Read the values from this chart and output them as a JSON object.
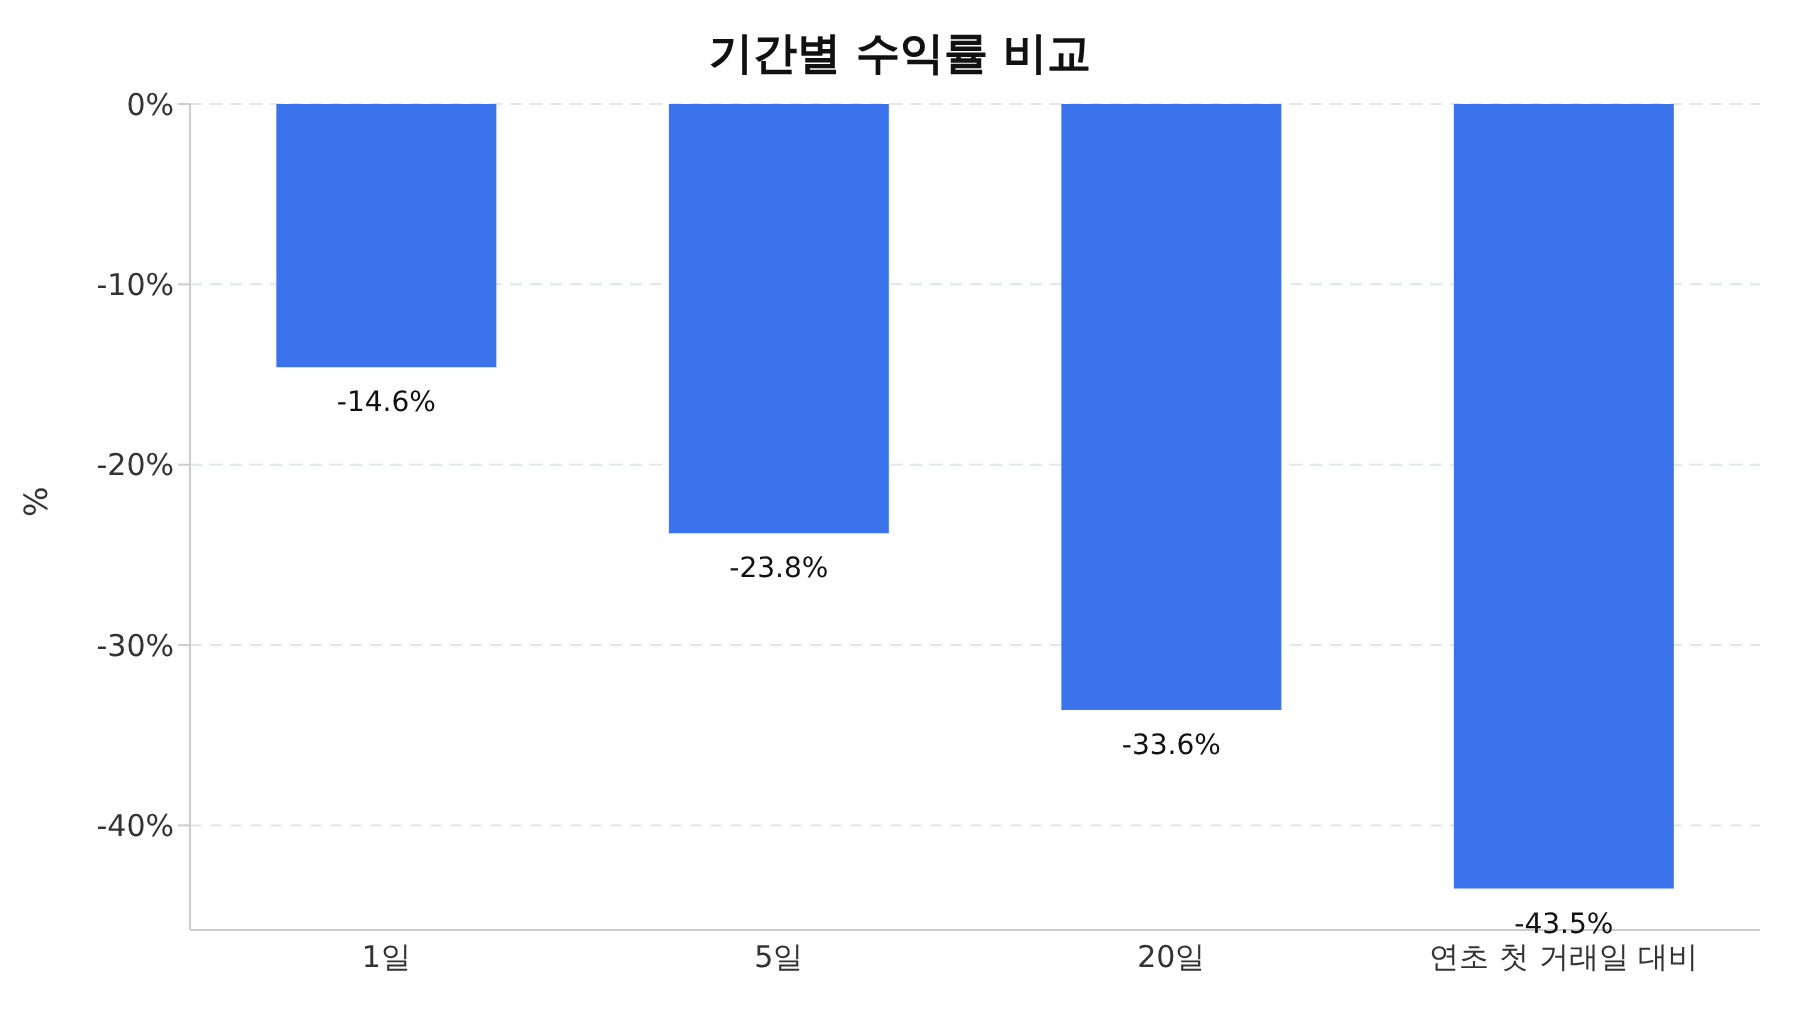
{
  "chart_data": {
    "type": "bar",
    "title": "기간별 수익률 비교",
    "ylabel": "%",
    "categories": [
      "1일",
      "5일",
      "20일",
      "연초 첫 거래일 대비"
    ],
    "values": [
      -14.6,
      -23.8,
      -33.6,
      -43.5
    ],
    "value_labels": [
      "-14.6%",
      "-23.8%",
      "-33.6%",
      "-43.5%"
    ],
    "color": "#3b73ec",
    "ylim": [
      -45.8,
      0
    ],
    "yticks": [
      {
        "value": 0,
        "label": "0%"
      },
      {
        "value": -10,
        "label": "-10%"
      },
      {
        "value": -20,
        "label": "-20%"
      },
      {
        "value": -30,
        "label": "-30%"
      },
      {
        "value": -40,
        "label": "-40%"
      }
    ],
    "grid": "y"
  }
}
